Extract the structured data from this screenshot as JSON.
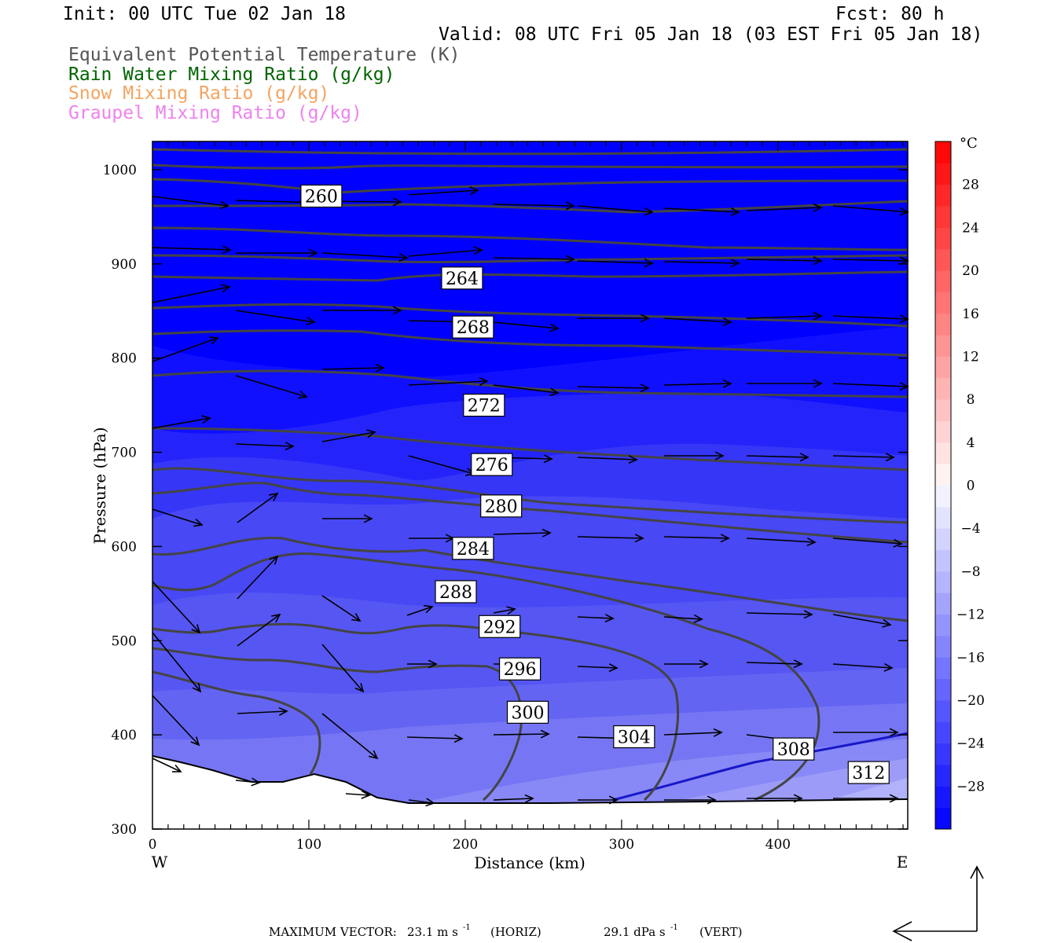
{
  "header": {
    "init": "Init: 00 UTC Tue 02 Jan 18",
    "fcst": "Fcst:   80 h",
    "valid": "Valid: 08 UTC Fri 05 Jan 18 (03 EST Fri 05 Jan 18)"
  },
  "legend": [
    {
      "label": "Equivalent Potential Temperature (K)",
      "color": "#555555"
    },
    {
      "label": "Rain Water Mixing Ratio (g/kg)",
      "color": "#006400"
    },
    {
      "label": "Snow Mixing Ratio (g/kg)",
      "color": "#f4a460"
    },
    {
      "label": "Graupel Mixing Ratio (g/kg)",
      "color": "#ee82ee"
    }
  ],
  "footer": {
    "max_label": "MAXIMUM VECTOR:",
    "horiz": "23.1 m s",
    "horiz_unit": "(HORIZ)",
    "vert": "29.1 dPa s",
    "vert_unit": "(VERT)",
    "exp": "-1"
  },
  "chart_data": {
    "type": "heatmap",
    "xlabel": "Distance (km)",
    "ylabel": "Pressure (hPa)",
    "xlim": [
      0,
      483
    ],
    "ylim": [
      1030,
      300
    ],
    "x_ticks": [
      "0",
      "100",
      "200",
      "300",
      "400"
    ],
    "y_ticks": [
      "300",
      "400",
      "500",
      "600",
      "700",
      "800",
      "900",
      "1000"
    ],
    "x_tick_values": [
      0,
      100,
      200,
      300,
      400
    ],
    "y_tick_values": [
      300,
      400,
      500,
      600,
      700,
      800,
      900,
      1000
    ],
    "x_end_labels": {
      "left": "W",
      "right": "E"
    },
    "colorbar": {
      "unit": "°C",
      "labels": [
        "28",
        "24",
        "20",
        "16",
        "12",
        "8",
        "4",
        "0",
        "−4",
        "−8",
        "−12",
        "−16",
        "−20",
        "−24",
        "−28"
      ],
      "label_values": [
        28,
        24,
        20,
        16,
        12,
        8,
        4,
        0,
        -4,
        -8,
        -12,
        -16,
        -20,
        -24,
        -28
      ],
      "range": [
        -32,
        32
      ]
    },
    "theta_e_labels": [
      {
        "text": "312",
        "x": 458,
        "p": 360
      },
      {
        "text": "308",
        "x": 410,
        "p": 385
      },
      {
        "text": "304",
        "x": 308,
        "p": 398
      },
      {
        "text": "300",
        "x": 240,
        "p": 424
      },
      {
        "text": "296",
        "x": 235,
        "p": 470
      },
      {
        "text": "292",
        "x": 222,
        "p": 515
      },
      {
        "text": "288",
        "x": 194,
        "p": 552
      },
      {
        "text": "284",
        "x": 205,
        "p": 598
      },
      {
        "text": "280",
        "x": 223,
        "p": 643
      },
      {
        "text": "276",
        "x": 217,
        "p": 687
      },
      {
        "text": "272",
        "x": 212,
        "p": 750
      },
      {
        "text": "268",
        "x": 205,
        "p": 833
      },
      {
        "text": "264",
        "x": 198,
        "p": 885
      },
      {
        "text": "260",
        "x": 108,
        "p": 972
      }
    ]
  }
}
